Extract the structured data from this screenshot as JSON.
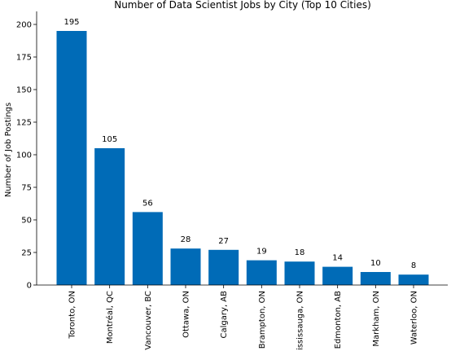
{
  "chart_data": {
    "type": "bar",
    "title": "Number of Data Scientist Jobs by City (Top 10 Cities)",
    "xlabel": "",
    "ylabel": "Number of Job Postings",
    "categories": [
      "Toronto, ON",
      "Montréal, QC",
      "Vancouver, BC",
      "Ottawa, ON",
      "Calgary, AB",
      "Brampton, ON",
      "Mississauga, ON",
      "Edmonton, AB",
      "Markham, ON",
      "Waterloo, ON"
    ],
    "values": [
      195,
      105,
      56,
      28,
      27,
      19,
      18,
      14,
      10,
      8
    ],
    "data_labels": [
      "195",
      "105",
      "56",
      "28",
      "27",
      "19",
      "18",
      "14",
      "10",
      "8"
    ],
    "ylim": [
      0,
      210
    ],
    "yticks": [
      0,
      25,
      50,
      75,
      100,
      125,
      150,
      175,
      200
    ],
    "ytick_labels": [
      "0",
      "25",
      "50",
      "75",
      "100",
      "125",
      "150",
      "175",
      "200"
    ],
    "bar_color": "#006bb7",
    "grid": false,
    "legend": null
  }
}
